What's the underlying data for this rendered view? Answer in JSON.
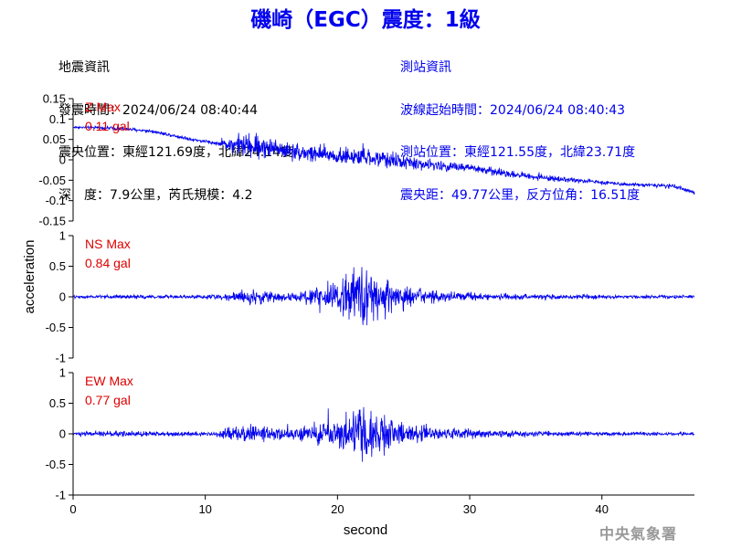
{
  "title": "磯崎（EGC）震度：1級",
  "event_info": {
    "heading": "地震資訊",
    "origin_time": "發震時間：2024/06/24 08:40:44",
    "epicenter": "震央位置：東經121.69度，北緯24.14度",
    "depth_magnitude": "深　度：7.9公里，芮氏規模：4.2"
  },
  "station_info": {
    "heading": "測站資訊",
    "wave_start": "波線起始時間：2024/06/24 08:40:43",
    "station_location": "測站位置：東經121.55度，北緯23.71度",
    "distance_azimuth": "震央距：49.77公里，反方位角：16.51度"
  },
  "credit": "中央氣象署",
  "colors": {
    "trace": "#0000ee",
    "max_label": "#dd0000",
    "axis": "#000000"
  },
  "chart_data": {
    "type": "line",
    "xlabel": "second",
    "ylabel": "acceleration",
    "xlim": [
      0,
      47
    ],
    "xticks": [
      0,
      10,
      20,
      30,
      40
    ],
    "grid": false,
    "series": [
      {
        "name": "Z Max",
        "max_value": "0.11 gal",
        "ylim": [
          -0.15,
          0.15
        ],
        "yticks": [
          0.15,
          0.1,
          0.05,
          0,
          -0.05,
          -0.1,
          -0.15
        ],
        "ytick_labels": [
          "0.15",
          "0.1",
          "0.05",
          "0",
          "-0.05",
          "-0.1",
          "-0.15"
        ],
        "x": [
          0,
          3,
          6,
          9,
          11,
          12,
          13,
          14,
          15,
          16,
          17,
          18,
          20,
          22,
          24,
          26,
          28,
          30,
          32,
          34,
          36,
          38,
          40,
          42,
          44,
          45.5,
          47
        ],
        "baseline": [
          0.08,
          0.078,
          0.07,
          0.05,
          0.04,
          0.038,
          0.035,
          0.032,
          0.03,
          0.025,
          0.02,
          0.015,
          0.01,
          0.005,
          0,
          -0.01,
          -0.015,
          -0.02,
          -0.03,
          -0.038,
          -0.045,
          -0.05,
          -0.055,
          -0.06,
          -0.062,
          -0.066,
          -0.08
        ],
        "amplitude": [
          0.004,
          0.006,
          0.006,
          0.006,
          0.007,
          0.03,
          0.045,
          0.045,
          0.035,
          0.03,
          0.03,
          0.035,
          0.03,
          0.03,
          0.03,
          0.022,
          0.018,
          0.016,
          0.014,
          0.012,
          0.01,
          0.008,
          0.007,
          0.006,
          0.006,
          0.008,
          0.006
        ]
      },
      {
        "name": "NS Max",
        "max_value": "0.84 gal",
        "ylim": [
          -1,
          1
        ],
        "yticks": [
          1,
          0.5,
          0,
          -0.5,
          -1
        ],
        "ytick_labels": [
          "1",
          "0.5",
          "0",
          "-0.5",
          "-1"
        ],
        "x": [
          0,
          3,
          6,
          9,
          11,
          12,
          13,
          14,
          15,
          16,
          17,
          18,
          20,
          22,
          24,
          26,
          28,
          30,
          32,
          34,
          36,
          38,
          40,
          42,
          44,
          45.5,
          47
        ],
        "baseline": [
          0,
          0,
          0,
          0,
          0,
          0,
          0,
          0,
          0,
          0,
          0,
          0,
          0,
          0,
          0,
          0,
          0,
          0,
          0,
          0,
          0,
          0,
          0,
          0,
          0,
          0,
          0
        ],
        "amplitude": [
          0.03,
          0.05,
          0.04,
          0.04,
          0.05,
          0.1,
          0.16,
          0.15,
          0.12,
          0.11,
          0.12,
          0.2,
          0.38,
          0.7,
          0.35,
          0.22,
          0.14,
          0.1,
          0.08,
          0.07,
          0.06,
          0.05,
          0.05,
          0.04,
          0.04,
          0.04,
          0.03
        ]
      },
      {
        "name": "EW Max",
        "max_value": "0.77 gal",
        "ylim": [
          -1,
          1
        ],
        "yticks": [
          1,
          0.5,
          0,
          -0.5,
          -1
        ],
        "ytick_labels": [
          "1",
          "0.5",
          "0",
          "-0.5",
          "-1"
        ],
        "x": [
          0,
          3,
          6,
          9,
          11,
          12,
          13,
          14,
          15,
          16,
          17,
          18,
          20,
          22,
          24,
          26,
          28,
          30,
          32,
          34,
          36,
          38,
          40,
          42,
          44,
          45.5,
          47
        ],
        "baseline": [
          0,
          0,
          0,
          0,
          0,
          0,
          0,
          0,
          0,
          0,
          0,
          0,
          0,
          0,
          0,
          0,
          0,
          0,
          0,
          0,
          0,
          0,
          0,
          0,
          0,
          0,
          0
        ],
        "amplitude": [
          0.03,
          0.07,
          0.05,
          0.05,
          0.06,
          0.18,
          0.22,
          0.2,
          0.15,
          0.12,
          0.14,
          0.2,
          0.4,
          0.65,
          0.35,
          0.2,
          0.13,
          0.1,
          0.08,
          0.07,
          0.06,
          0.05,
          0.05,
          0.04,
          0.04,
          0.04,
          0.03
        ]
      }
    ]
  }
}
